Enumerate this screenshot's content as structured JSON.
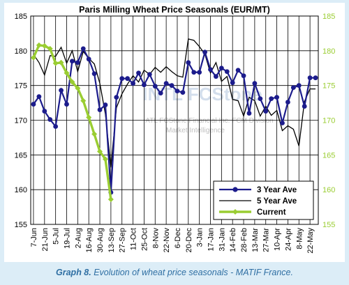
{
  "chart_data": {
    "type": "line",
    "title": "Paris Milling Wheat Price Seasonals (EUR/MT)",
    "watermark": "ATL FCStone Financial Inc. FCM Division Market Intelligence",
    "watermark_logo": "INTL FCStone",
    "xlabel": "",
    "ylabel": "",
    "ylim": [
      155,
      185
    ],
    "yticks": [
      155,
      160,
      165,
      170,
      175,
      180,
      185
    ],
    "y_left_color": "#000000",
    "y_right_color": "#9acd32",
    "grid": true,
    "legend_position": "bottom-right",
    "x_tick_labels": [
      "7-Jun",
      "21-Jun",
      "5-Jul",
      "19-Jul",
      "2-Aug",
      "16-Aug",
      "30-Aug",
      "13-Sep",
      "27-Sep",
      "11-Oct",
      "25-Oct",
      "8-Nov",
      "22-Nov",
      "6-Dec",
      "20-Dec",
      "3-Jan",
      "17-Jan",
      "31-Jan",
      "14-Feb",
      "28-Feb",
      "13-Mar",
      "27-Mar",
      "10-Apr",
      "24-Apr",
      "8-May",
      "22-May"
    ],
    "x_count": 52,
    "series": [
      {
        "name": "3 Year Ave",
        "color": "#1c1c8c",
        "marker": "circle",
        "values": [
          172.3,
          173.4,
          171.3,
          170.1,
          169.1,
          174.3,
          172.3,
          178.5,
          178.3,
          180.3,
          178.8,
          176.7,
          171.5,
          172.2,
          159.6,
          173.3,
          176.0,
          176.0,
          175.3,
          176.8,
          175.1,
          176.6,
          174.9,
          173.9,
          175.3,
          175.0,
          174.2,
          174.0,
          178.3,
          176.9,
          176.9,
          179.8,
          177.3,
          176.3,
          177.5,
          177.0,
          175.4,
          177.2,
          176.4,
          171.0,
          175.3,
          173.1,
          171.3,
          173.1,
          173.3,
          169.6,
          172.6,
          174.7,
          175.0,
          172.0,
          176.1,
          176.1
        ]
      },
      {
        "name": "5 Year Ave",
        "color": "#000000",
        "marker": "none",
        "values": [
          179.5,
          178.3,
          176.5,
          179.3,
          179.2,
          180.5,
          178.2,
          180.0,
          177.0,
          179.9,
          178.9,
          178.1,
          175.3,
          170.9,
          163.2,
          171.8,
          173.8,
          175.2,
          176.4,
          175.5,
          177.2,
          176.6,
          177.6,
          176.9,
          177.7,
          177.0,
          176.4,
          176.2,
          181.7,
          181.5,
          180.6,
          179.5,
          176.8,
          178.3,
          175.6,
          176.3,
          173.0,
          172.8,
          170.6,
          173.3,
          172.8,
          170.6,
          172.0,
          170.7,
          171.4,
          168.5,
          169.2,
          168.7,
          166.3,
          172.7,
          174.5,
          174.5
        ]
      },
      {
        "name": "Current",
        "color": "#9acd32",
        "marker": "diamond",
        "values": [
          179.0,
          180.8,
          180.7,
          180.3,
          178.2,
          178.3,
          176.8,
          175.5,
          174.6,
          172.8,
          170.4,
          168.0,
          165.5,
          164.4,
          158.6
        ]
      }
    ]
  },
  "caption": {
    "label": "Graph 8.",
    "text": " Evolution of wheat price seasonals - MATIF France."
  }
}
